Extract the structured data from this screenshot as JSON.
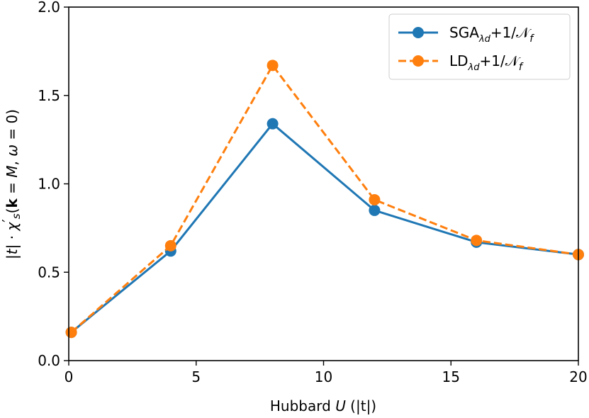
{
  "chart_data": {
    "type": "line",
    "title": "",
    "xlabel": "Hubbard U (|t|)",
    "ylabel": "|t| · χ′s(k = M, ω = 0)",
    "xlim": [
      0,
      20
    ],
    "ylim": [
      0.0,
      2.0
    ],
    "xticks": [
      0,
      5,
      10,
      15,
      20
    ],
    "xtick_labels": [
      "0",
      "5",
      "10",
      "15",
      "20"
    ],
    "yticks": [
      0.0,
      0.5,
      1.0,
      1.5,
      2.0
    ],
    "ytick_labels": [
      "0.0",
      "0.5",
      "1.0",
      "1.5",
      "2.0"
    ],
    "grid": false,
    "legend_position": "top-right",
    "series": [
      {
        "name": "SGA_λd+1/𝒩_f",
        "label_main": "SGA",
        "label_sub": "λd",
        "label_tail": "+1/𝒩",
        "label_tail_sub": "f",
        "color": "#1f77b4",
        "linestyle": "solid",
        "x": [
          0.1,
          4,
          8,
          12,
          16,
          20
        ],
        "y": [
          0.16,
          0.62,
          1.34,
          0.85,
          0.67,
          0.6
        ]
      },
      {
        "name": "LD_λd+1/𝒩_f",
        "label_main": "LD",
        "label_sub": "λd",
        "label_tail": "+1/𝒩",
        "label_tail_sub": "f",
        "color": "#ff7f0e",
        "linestyle": "dashed",
        "x": [
          0.1,
          4,
          8,
          12,
          16,
          20
        ],
        "y": [
          0.16,
          0.65,
          1.67,
          0.91,
          0.68,
          0.6
        ]
      }
    ]
  }
}
